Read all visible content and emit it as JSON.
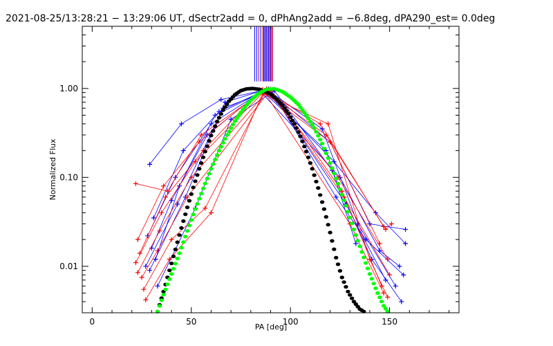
{
  "chart_data": {
    "type": "line",
    "title": "2021-08-25/13:28:21 − 13:29:06 UT, dSectr2add = 0, dPhAng2add = −6.8deg, dPA290_est=  0.0deg",
    "xlabel": "PA [deg]",
    "ylabel": "Normalized Flux",
    "xlim": [
      -5,
      185
    ],
    "ylim": [
      0.003,
      5
    ],
    "y_scale": "log",
    "x_ticks": [
      0,
      50,
      100,
      150
    ],
    "x_tick_labels": [
      "0",
      "50",
      "100",
      "150"
    ],
    "y_ticks": [
      0.01,
      0.1,
      1.0
    ],
    "y_tick_labels": [
      "0.01",
      "0.10",
      "1.00"
    ],
    "grid": false,
    "legend": "none",
    "colors": {
      "blue": "#0000ff",
      "red": "#ff0000",
      "black": "#000000",
      "green": "#00ff00",
      "purple": "#800080"
    },
    "vertical_markers": {
      "x": [
        82,
        83,
        84,
        85,
        86,
        86.5,
        87,
        87.5,
        88,
        88.5,
        89,
        89.5,
        90,
        90.5,
        91
      ],
      "y_from": 1.2,
      "y_to": 5
    },
    "series": [
      {
        "color": "blue",
        "marker": "+",
        "x": [
          29,
          45,
          65,
          88,
          120,
          140,
          158
        ],
        "y": [
          0.14,
          0.4,
          0.75,
          0.97,
          0.25,
          0.03,
          0.026
        ]
      },
      {
        "color": "blue",
        "marker": "+",
        "x": [
          31,
          46,
          64,
          87,
          122,
          143,
          158
        ],
        "y": [
          0.035,
          0.2,
          0.55,
          0.95,
          0.15,
          0.04,
          0.018
        ]
      },
      {
        "color": "blue",
        "marker": "+",
        "x": [
          28,
          42,
          60,
          86,
          118,
          133
        ],
        "y": [
          0.022,
          0.1,
          0.4,
          0.93,
          0.2,
          0.018
        ]
      },
      {
        "color": "blue",
        "marker": "+",
        "x": [
          30,
          40,
          58,
          85,
          125,
          145,
          155
        ],
        "y": [
          0.016,
          0.055,
          0.3,
          0.92,
          0.1,
          0.015,
          0.01
        ]
      },
      {
        "color": "blue",
        "marker": "+",
        "x": [
          32,
          44,
          62,
          89,
          128,
          148
        ],
        "y": [
          0.012,
          0.08,
          0.5,
          0.99,
          0.05,
          0.007
        ]
      },
      {
        "color": "blue",
        "marker": "+",
        "x": [
          27,
          43,
          66,
          90,
          123,
          138,
          157
        ],
        "y": [
          0.01,
          0.05,
          0.6,
          0.96,
          0.06,
          0.02,
          0.008
        ]
      },
      {
        "color": "blue",
        "marker": "+",
        "x": [
          29,
          47,
          67,
          88,
          116,
          134,
          153
        ],
        "y": [
          0.009,
          0.06,
          0.7,
          0.98,
          0.35,
          0.03,
          0.006
        ]
      },
      {
        "color": "blue",
        "marker": "+",
        "x": [
          33,
          52,
          70,
          92,
          121,
          141,
          156
        ],
        "y": [
          0.006,
          0.045,
          0.45,
          0.94,
          0.12,
          0.012,
          0.004
        ]
      },
      {
        "color": "red",
        "marker": "+",
        "x": [
          22,
          38,
          55,
          87,
          115,
          147
        ],
        "y": [
          0.085,
          0.07,
          0.3,
          0.95,
          0.4,
          0.028
        ]
      },
      {
        "color": "red",
        "marker": "+",
        "x": [
          23,
          36,
          54,
          86,
          118,
          148,
          151
        ],
        "y": [
          0.02,
          0.08,
          0.25,
          0.97,
          0.3,
          0.026,
          0.03
        ]
      },
      {
        "color": "red",
        "marker": "+",
        "x": [
          24,
          37,
          56,
          85,
          120,
          145
        ],
        "y": [
          0.014,
          0.06,
          0.2,
          0.96,
          0.25,
          0.018
        ]
      },
      {
        "color": "red",
        "marker": "+",
        "x": [
          22,
          35,
          52,
          88,
          124,
          149
        ],
        "y": [
          0.011,
          0.04,
          0.15,
          0.99,
          0.1,
          0.012
        ]
      },
      {
        "color": "red",
        "marker": "+",
        "x": [
          23,
          34,
          50,
          89,
          127,
          150
        ],
        "y": [
          0.0085,
          0.025,
          0.1,
          0.97,
          0.06,
          0.008
        ]
      },
      {
        "color": "red",
        "marker": "+",
        "x": [
          25,
          33,
          48,
          90,
          126,
          146
        ],
        "y": [
          0.0075,
          0.015,
          0.06,
          0.98,
          0.07,
          0.006
        ]
      },
      {
        "color": "red",
        "marker": "+",
        "x": [
          26,
          40,
          57,
          87,
          130,
          147
        ],
        "y": [
          0.0055,
          0.02,
          0.045,
          0.9,
          0.03,
          0.005
        ]
      },
      {
        "color": "red",
        "marker": "+",
        "x": [
          27,
          39,
          60,
          86,
          119,
          140,
          149
        ],
        "y": [
          0.0042,
          0.012,
          0.04,
          0.88,
          0.4,
          0.012,
          0.0045
        ]
      }
    ],
    "fits": [
      {
        "color": "black",
        "marker": "dot",
        "x": [
          33,
          36,
          39,
          42,
          45,
          48,
          51,
          54,
          57,
          60,
          63,
          66,
          69,
          72,
          75,
          78,
          81,
          84,
          87,
          90,
          93,
          96,
          99,
          102,
          105,
          108,
          111,
          114,
          117,
          120,
          123,
          126,
          129,
          132,
          135,
          137
        ],
        "y": [
          0.0031,
          0.0052,
          0.009,
          0.0155,
          0.027,
          0.046,
          0.077,
          0.125,
          0.195,
          0.295,
          0.425,
          0.57,
          0.72,
          0.85,
          0.945,
          0.99,
          1.0,
          0.98,
          0.93,
          0.86,
          0.76,
          0.645,
          0.52,
          0.4,
          0.29,
          0.195,
          0.125,
          0.076,
          0.044,
          0.024,
          0.0125,
          0.0075,
          0.0052,
          0.004,
          0.0033,
          0.0031
        ]
      },
      {
        "color": "green",
        "marker": "dot",
        "x": [
          33,
          36,
          40,
          44,
          48,
          52,
          56,
          60,
          64,
          68,
          72,
          76,
          80,
          84,
          88,
          92,
          96,
          100,
          104,
          108,
          112,
          116,
          120,
          124,
          128,
          132,
          136,
          140,
          144,
          147,
          149
        ],
        "y": [
          0.0031,
          0.0048,
          0.0082,
          0.014,
          0.025,
          0.044,
          0.075,
          0.125,
          0.2,
          0.3,
          0.43,
          0.58,
          0.74,
          0.88,
          0.98,
          0.99,
          0.92,
          0.8,
          0.66,
          0.5,
          0.36,
          0.24,
          0.145,
          0.085,
          0.048,
          0.026,
          0.0145,
          0.0082,
          0.005,
          0.0036,
          0.0031
        ]
      }
    ]
  }
}
